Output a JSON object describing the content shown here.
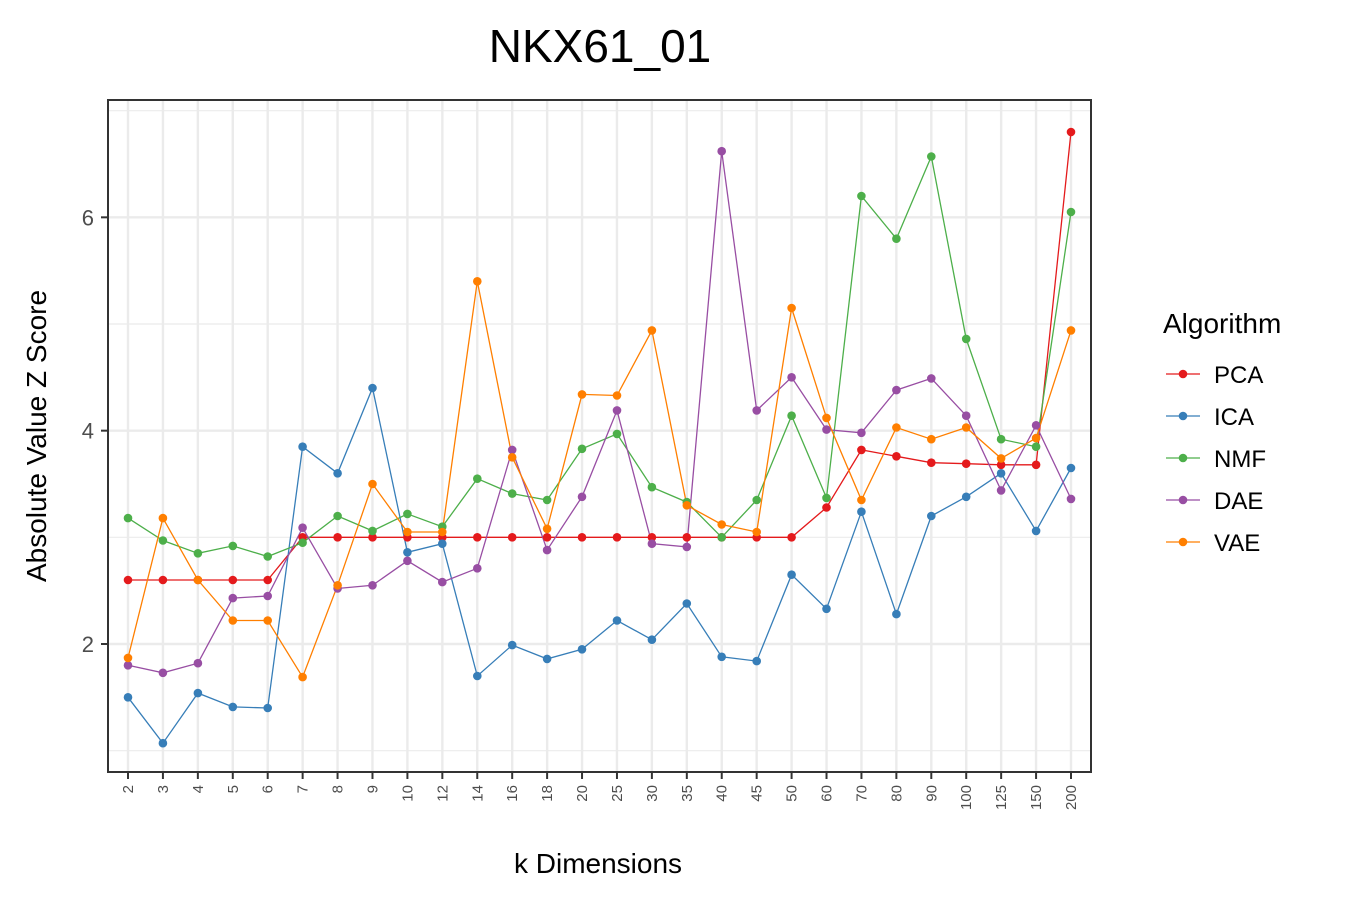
{
  "chart_data": {
    "type": "line",
    "title": "NKX61_01",
    "xlabel": "k Dimensions",
    "ylabel": "Absolute Value Z Score",
    "x": [
      "2",
      "3",
      "4",
      "5",
      "6",
      "7",
      "8",
      "9",
      "10",
      "12",
      "14",
      "16",
      "18",
      "20",
      "25",
      "30",
      "35",
      "40",
      "45",
      "50",
      "60",
      "70",
      "80",
      "90",
      "100",
      "125",
      "150",
      "200"
    ],
    "yticks": [
      2,
      4,
      6
    ],
    "ylim": [
      0.8,
      7.1
    ],
    "grid": true,
    "legend": {
      "title": "Algorithm",
      "placement": "right"
    },
    "series": [
      {
        "name": "PCA",
        "color": "#e41a1c",
        "values": [
          2.6,
          2.6,
          2.6,
          2.6,
          2.6,
          3.0,
          3.0,
          3.0,
          3.0,
          3.0,
          3.0,
          3.0,
          3.0,
          3.0,
          3.0,
          3.0,
          3.0,
          3.0,
          3.0,
          3.0,
          3.28,
          3.82,
          3.76,
          3.7,
          3.69,
          3.68,
          3.68,
          6.8
        ]
      },
      {
        "name": "ICA",
        "color": "#377eb8",
        "values": [
          1.5,
          1.07,
          1.54,
          1.41,
          1.4,
          3.85,
          3.6,
          4.4,
          2.86,
          2.94,
          1.7,
          1.99,
          1.86,
          1.95,
          2.22,
          2.04,
          2.38,
          1.88,
          1.84,
          2.65,
          2.33,
          3.24,
          2.28,
          3.2,
          3.38,
          3.6,
          3.06,
          3.65
        ]
      },
      {
        "name": "NMF",
        "color": "#4daf4a",
        "values": [
          3.18,
          2.97,
          2.85,
          2.92,
          2.82,
          2.95,
          3.2,
          3.06,
          3.22,
          3.1,
          3.55,
          3.41,
          3.35,
          3.83,
          3.97,
          3.47,
          3.33,
          3.0,
          3.35,
          4.14,
          3.37,
          6.2,
          5.8,
          6.57,
          4.86,
          3.92,
          3.85,
          6.05
        ]
      },
      {
        "name": "DAE",
        "color": "#984ea3",
        "values": [
          1.8,
          1.73,
          1.82,
          2.43,
          2.45,
          3.09,
          2.52,
          2.55,
          2.78,
          2.58,
          2.71,
          3.82,
          2.88,
          3.38,
          4.19,
          2.94,
          2.91,
          6.62,
          4.19,
          4.5,
          4.01,
          3.98,
          4.38,
          4.49,
          4.14,
          3.44,
          4.05,
          3.36
        ]
      },
      {
        "name": "VAE",
        "color": "#ff7f00",
        "values": [
          1.87,
          3.18,
          2.6,
          2.22,
          2.22,
          1.69,
          2.55,
          3.5,
          3.05,
          3.05,
          5.4,
          3.75,
          3.08,
          4.34,
          4.33,
          4.94,
          3.3,
          3.12,
          3.05,
          5.15,
          4.12,
          3.35,
          4.03,
          3.92,
          4.03,
          3.74,
          3.93,
          4.94
        ]
      }
    ]
  }
}
